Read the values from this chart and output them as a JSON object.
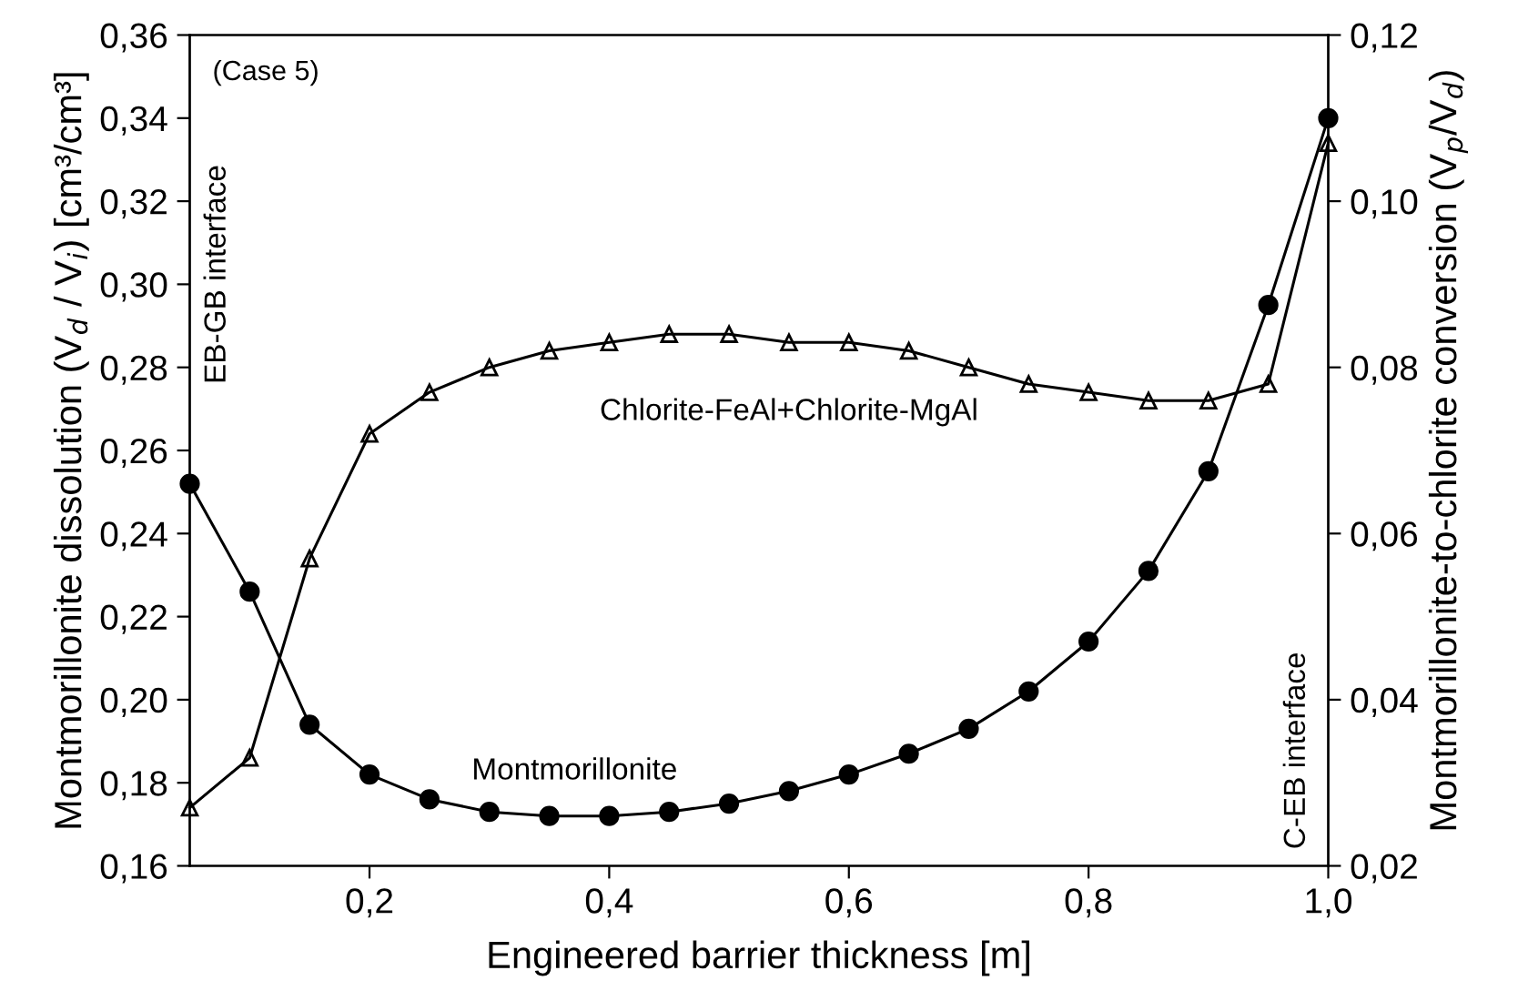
{
  "chart_data": {
    "type": "line",
    "xlabel": "Engineered barrier thickness [m]",
    "ylabel": "Montmorillonite dissolution (V$_{d}$ / V$_{i}$) [cm³/cm³]",
    "y2label": "Montmorillonite-to-chlorite conversion (V$_{p}$/V$_{d}$)",
    "annotations": [
      "(Case 5)",
      "EB-GB interface",
      "C-EB interface"
    ],
    "x": [
      0.05,
      0.1,
      0.15,
      0.2,
      0.25,
      0.3,
      0.35,
      0.4,
      0.45,
      0.5,
      0.55,
      0.6,
      0.65,
      0.7,
      0.75,
      0.8,
      0.85,
      0.9,
      0.95,
      1.0
    ],
    "series": [
      {
        "name": "Montmorillonite",
        "color": "#000000",
        "marker": "circle",
        "values": [
          0.252,
          0.226,
          0.194,
          0.182,
          0.176,
          0.173,
          0.172,
          0.172,
          0.173,
          0.175,
          0.178,
          0.182,
          0.187,
          0.193,
          0.202,
          0.214,
          0.231,
          0.255,
          0.295,
          0.34
        ]
      },
      {
        "name": "Chlorite-FeAl+Chlorite-MgAl",
        "color": "#000000",
        "marker": "triangle",
        "axis": "y2",
        "values": [
          0.027,
          0.033,
          0.057,
          0.072,
          0.077,
          0.08,
          0.082,
          0.083,
          0.084,
          0.084,
          0.083,
          0.083,
          0.082,
          0.08,
          0.078,
          0.077,
          0.076,
          0.076,
          0.078,
          0.107
        ]
      }
    ],
    "xlim": [
      0.05,
      1.0
    ],
    "xticks": [
      {
        "value": 0.2,
        "label": "0,2"
      },
      {
        "value": 0.4,
        "label": "0,4"
      },
      {
        "value": 0.6,
        "label": "0,6"
      },
      {
        "value": 0.8,
        "label": "0,8"
      },
      {
        "value": 1.0,
        "label": "1,0"
      }
    ],
    "ylim": [
      0.16,
      0.36
    ],
    "yticks": [
      {
        "value": 0.16,
        "label": "0,16"
      },
      {
        "value": 0.18,
        "label": "0,18"
      },
      {
        "value": 0.2,
        "label": "0,20"
      },
      {
        "value": 0.22,
        "label": "0,22"
      },
      {
        "value": 0.24,
        "label": "0,24"
      },
      {
        "value": 0.26,
        "label": "0,26"
      },
      {
        "value": 0.28,
        "label": "0,28"
      },
      {
        "value": 0.3,
        "label": "0,30"
      },
      {
        "value": 0.32,
        "label": "0,32"
      },
      {
        "value": 0.34,
        "label": "0,34"
      },
      {
        "value": 0.36,
        "label": "0,36"
      }
    ],
    "y2lim": [
      0.02,
      0.12
    ],
    "y2ticks": [
      {
        "value": 0.02,
        "label": "0,02"
      },
      {
        "value": 0.04,
        "label": "0,04"
      },
      {
        "value": 0.06,
        "label": "0,06"
      },
      {
        "value": 0.08,
        "label": "0,08"
      },
      {
        "value": 0.1,
        "label": "0,10"
      },
      {
        "value": 0.12,
        "label": "0,12"
      }
    ],
    "grid": false,
    "legend": false,
    "line_style": "solid"
  }
}
